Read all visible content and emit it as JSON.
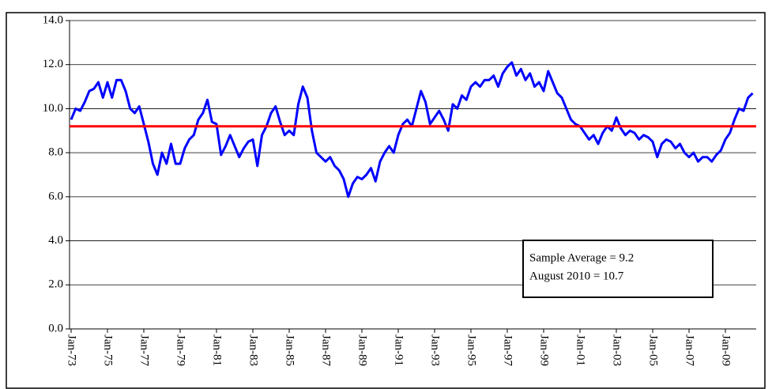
{
  "chart_data": {
    "type": "line",
    "categories": [
      "Jan-73",
      null,
      null,
      null,
      null,
      null,
      null,
      null,
      "Jan-75",
      null,
      null,
      null,
      null,
      null,
      null,
      null,
      "Jan-77",
      null,
      null,
      null,
      null,
      null,
      null,
      null,
      "Jan-79",
      null,
      null,
      null,
      null,
      null,
      null,
      null,
      "Jan-81",
      null,
      null,
      null,
      null,
      null,
      null,
      null,
      "Jan-83",
      null,
      null,
      null,
      null,
      null,
      null,
      null,
      "Jan-85",
      null,
      null,
      null,
      null,
      null,
      null,
      null,
      "Jan-87",
      null,
      null,
      null,
      null,
      null,
      null,
      null,
      "Jan-89",
      null,
      null,
      null,
      null,
      null,
      null,
      null,
      "Jan-91",
      null,
      null,
      null,
      null,
      null,
      null,
      null,
      "Jan-93",
      null,
      null,
      null,
      null,
      null,
      null,
      null,
      "Jan-95",
      null,
      null,
      null,
      null,
      null,
      null,
      null,
      "Jan-97",
      null,
      null,
      null,
      null,
      null,
      null,
      null,
      "Jan-99",
      null,
      null,
      null,
      null,
      null,
      null,
      null,
      "Jan-01",
      null,
      null,
      null,
      null,
      null,
      null,
      null,
      "Jan-03",
      null,
      null,
      null,
      null,
      null,
      null,
      null,
      "Jan-05",
      null,
      null,
      null,
      null,
      null,
      null,
      null,
      "Jan-07",
      null,
      null,
      null,
      null,
      null,
      null,
      null,
      "Jan-09",
      null,
      null,
      null,
      null,
      null,
      null
    ],
    "series": [
      {
        "color": "#0000ff",
        "values": [
          9.5,
          10.0,
          9.9,
          10.3,
          10.8,
          10.9,
          11.2,
          10.5,
          11.2,
          10.5,
          11.3,
          11.3,
          10.8,
          10.0,
          9.8,
          10.1,
          9.3,
          8.5,
          7.5,
          7.0,
          8.0,
          7.5,
          8.4,
          7.5,
          7.5,
          8.2,
          8.6,
          8.8,
          9.5,
          9.8,
          10.4,
          9.4,
          9.3,
          7.9,
          8.3,
          8.8,
          8.3,
          7.8,
          8.2,
          8.5,
          8.6,
          7.4,
          8.8,
          9.2,
          9.8,
          10.1,
          9.4,
          8.8,
          9.0,
          8.8,
          10.2,
          11.0,
          10.5,
          9.0,
          8.0,
          7.8,
          7.6,
          7.8,
          7.4,
          7.2,
          6.8,
          6.0,
          6.6,
          6.9,
          6.8,
          7.0,
          7.3,
          6.7,
          7.6,
          8.0,
          8.3,
          8.0,
          8.8,
          9.3,
          9.5,
          9.2,
          10.0,
          10.8,
          10.3,
          9.3,
          9.6,
          9.9,
          9.5,
          9.0,
          10.2,
          10.0,
          10.6,
          10.4,
          11.0,
          11.2,
          11.0,
          11.3,
          11.3,
          11.5,
          11.0,
          11.6,
          11.9,
          12.1,
          11.5,
          11.8,
          11.3,
          11.6,
          11.0,
          11.2,
          10.8,
          11.7,
          11.2,
          10.7,
          10.5,
          10.0,
          9.5,
          9.3,
          9.2,
          8.9,
          8.6,
          8.8,
          8.4,
          8.9,
          9.2,
          9.0,
          9.6,
          9.1,
          8.8,
          9.0,
          8.9,
          8.6,
          8.8,
          8.7,
          8.5,
          7.8,
          8.4,
          8.6,
          8.5,
          8.2,
          8.4,
          8.0,
          7.8,
          8.0,
          7.6,
          7.8,
          7.8,
          7.6,
          7.9,
          8.1,
          8.6,
          8.9,
          9.5,
          10.0,
          9.9,
          10.5,
          10.7
        ]
      }
    ],
    "average": {
      "value": 9.2,
      "color": "#ff0000"
    },
    "annotations": [
      "Sample Average = 9.2",
      "August 2010 = 10.7"
    ],
    "ylim": [
      0,
      14
    ],
    "yticks": [
      {
        "value": 0,
        "label": "0.0"
      },
      {
        "value": 2,
        "label": "2.0"
      },
      {
        "value": 4,
        "label": "4.0"
      },
      {
        "value": 6,
        "label": "6.0"
      },
      {
        "value": 8,
        "label": "8.0"
      },
      {
        "value": 10,
        "label": "10.0"
      },
      {
        "value": 12,
        "label": "12.0"
      },
      {
        "value": 14,
        "label": "14.0"
      }
    ],
    "grid": true
  }
}
